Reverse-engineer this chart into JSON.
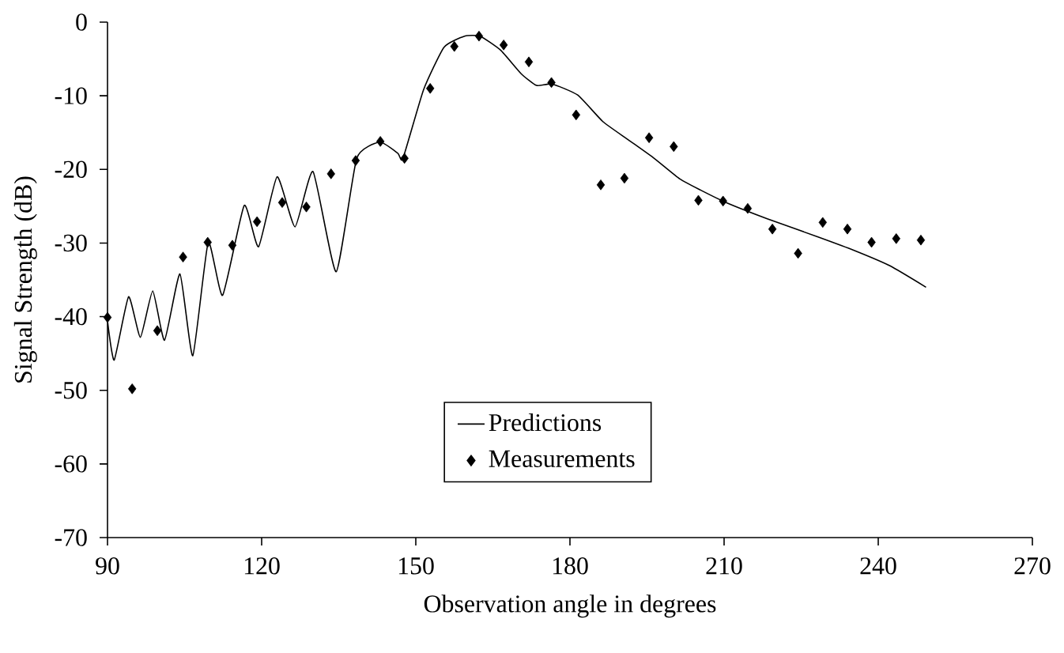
{
  "chart_data": {
    "type": "line",
    "xlabel": "Observation angle in degrees",
    "ylabel": "Signal Strength (dB)",
    "xlim": [
      90,
      270
    ],
    "xticks": [
      90,
      120,
      150,
      180,
      210,
      240,
      270
    ],
    "ylim": [
      -70,
      0
    ],
    "yticks": [
      -70,
      -60,
      -50,
      -40,
      -30,
      -20,
      -10,
      0
    ],
    "grid": false,
    "legend": "bottom",
    "line_style": "solid",
    "series": [
      {
        "name": "Predictions",
        "type": "line",
        "color": "#000000",
        "marker": "none",
        "x": [
          90,
          91.3,
          94.1,
          96.4,
          98.8,
          101.1,
          104.1,
          106.6,
          109.6,
          112.4,
          116.6,
          119.4,
          123,
          126.5,
          130,
          134.5,
          138.5,
          143,
          146.5,
          147.5,
          151.5,
          155.5,
          159.5,
          162.5,
          166.5,
          170.5,
          173.5,
          176.5,
          181.5,
          186.4,
          191.4,
          196.4,
          201.4,
          205.4,
          210.4,
          218.4,
          228.4,
          235.3,
          242.3,
          249.3
        ],
        "values": [
          -40.6,
          -45.9,
          -37.3,
          -42.8,
          -36.5,
          -43.2,
          -34.2,
          -45.3,
          -29.9,
          -37.1,
          -24.9,
          -30.5,
          -21,
          -27.8,
          -20.3,
          -33.9,
          -18.5,
          -16.3,
          -17.8,
          -18.5,
          -9.2,
          -3.4,
          -1.9,
          -1.9,
          -3.8,
          -7,
          -8.6,
          -8.4,
          -9.9,
          -13.5,
          -16,
          -18.5,
          -21.3,
          -22.8,
          -24.5,
          -26.7,
          -29.2,
          -31,
          -33.1,
          -36
        ]
      },
      {
        "name": "Measurements",
        "type": "scatter",
        "color": "#000000",
        "marker": "diamond",
        "x": [
          90,
          94.8,
          99.7,
          104.7,
          109.5,
          114.3,
          119.1,
          124,
          128.7,
          133.5,
          138.3,
          143.1,
          147.8,
          152.8,
          157.5,
          162.3,
          167.1,
          172,
          176.4,
          181.2,
          186,
          190.6,
          195.4,
          200.2,
          205,
          209.8,
          214.6,
          219.4,
          224.4,
          229.2,
          234,
          238.7,
          243.5,
          248.3
        ],
        "values": [
          -40.1,
          -49.8,
          -41.9,
          -31.9,
          -29.9,
          -30.3,
          -27.1,
          -24.5,
          -25.1,
          -20.6,
          -18.8,
          -16.2,
          -18.5,
          -9,
          -3.3,
          -1.9,
          -3.1,
          -5.4,
          -8.2,
          -12.6,
          -22.1,
          -21.2,
          -15.7,
          -16.9,
          -24.2,
          -24.3,
          -25.3,
          -28.1,
          -31.4,
          -27.2,
          -28.1,
          -29.9,
          -29.4,
          -29.6
        ]
      }
    ]
  }
}
